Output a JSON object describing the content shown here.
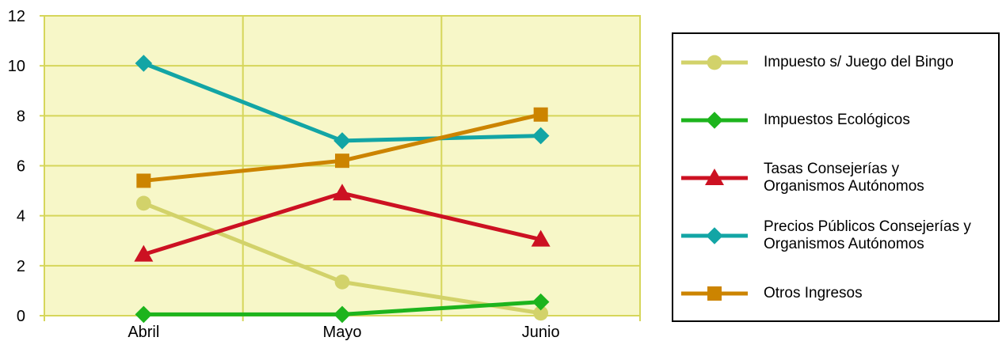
{
  "chart_data": {
    "type": "line",
    "categories": [
      "Abril",
      "Mayo",
      "Junio"
    ],
    "ylim": [
      0,
      12
    ],
    "yticks": [
      "0",
      "2",
      "4",
      "6",
      "8",
      "10",
      "12"
    ],
    "grid": true,
    "plot_background": "#f7f7c8",
    "grid_color": "#d6d65a",
    "legend_position": "right",
    "series": [
      {
        "name": "Impuesto s/ Juego del Bingo",
        "values": [
          4.5,
          1.35,
          0.1
        ],
        "color": "#d2d26a",
        "marker": "circle"
      },
      {
        "name": "Impuestos Ecológicos",
        "values": [
          0.05,
          0.05,
          0.55
        ],
        "color": "#1db41d",
        "marker": "diamond"
      },
      {
        "name": "Tasas Consejerías y\nOrganismos Autónomos",
        "values": [
          2.45,
          4.9,
          3.05
        ],
        "color": "#cc1122",
        "marker": "triangle"
      },
      {
        "name": "Precios Públicos Consejerías y\nOrganismos Autónomos",
        "values": [
          10.1,
          7.0,
          7.2
        ],
        "color": "#13a5a5",
        "marker": "diamond"
      },
      {
        "name": "Otros Ingresos",
        "values": [
          5.4,
          6.2,
          8.05
        ],
        "color": "#cc8400",
        "marker": "square"
      }
    ]
  }
}
